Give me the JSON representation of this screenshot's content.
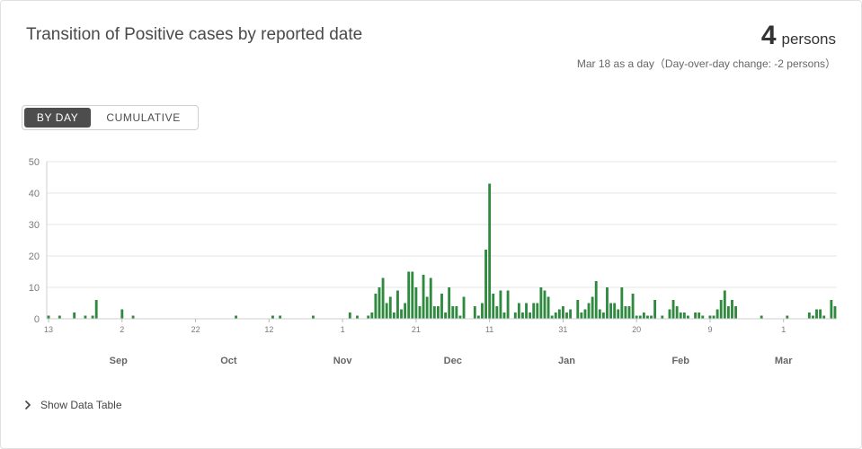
{
  "header": {
    "title": "Transition of Positive cases by reported date",
    "headline_value": "4",
    "headline_unit": "persons",
    "subnote": "Mar 18 as a day（Day-over-day change: -2 persons）"
  },
  "toggle": {
    "by_day": "BY DAY",
    "cumulative": "CUMULATIVE",
    "active": "by_day"
  },
  "footer": {
    "show_table": "Show Data Table",
    "icon": "chevron-right-icon"
  },
  "colors": {
    "bar": "#2f8a3f",
    "grid": "#e6e6e6",
    "axis_text": "#7a7a7a"
  },
  "chart_data": {
    "type": "bar",
    "x_start": "2020-08-13",
    "x_end": "2021-03-18",
    "ylim": [
      0,
      50
    ],
    "yticks": [
      0,
      10,
      20,
      30,
      40,
      50
    ],
    "grid": true,
    "day_ticks": [
      "13",
      "2",
      "22",
      "12",
      "1",
      "21",
      "11",
      "31",
      "20",
      "9",
      "1"
    ],
    "month_labels": [
      "Sep",
      "Oct",
      "Nov",
      "Dec",
      "Jan",
      "Feb",
      "Mar"
    ],
    "values": [
      1,
      0,
      0,
      1,
      0,
      0,
      0,
      2,
      0,
      0,
      1,
      0,
      1,
      6,
      0,
      0,
      0,
      0,
      0,
      0,
      3,
      0,
      0,
      1,
      0,
      0,
      0,
      0,
      0,
      0,
      0,
      0,
      0,
      0,
      0,
      0,
      0,
      0,
      0,
      0,
      0,
      0,
      0,
      0,
      0,
      0,
      0,
      0,
      0,
      0,
      0,
      1,
      0,
      0,
      0,
      0,
      0,
      0,
      0,
      0,
      0,
      1,
      0,
      1,
      0,
      0,
      0,
      0,
      0,
      0,
      0,
      0,
      1,
      0,
      0,
      0,
      0,
      0,
      0,
      0,
      0,
      0,
      2,
      0,
      1,
      0,
      0,
      1,
      2,
      8,
      10,
      13,
      5,
      7,
      2,
      9,
      3,
      5,
      15,
      15,
      10,
      4,
      14,
      7,
      13,
      4,
      4,
      8,
      2,
      10,
      4,
      4,
      1,
      7,
      0,
      0,
      4,
      1,
      5,
      22,
      43,
      8,
      4,
      9,
      2,
      9,
      0,
      2,
      5,
      2,
      5,
      2,
      5,
      5,
      10,
      9,
      7,
      1,
      2,
      3,
      4,
      2,
      3,
      0,
      6,
      2,
      3,
      5,
      7,
      12,
      3,
      2,
      10,
      5,
      5,
      3,
      10,
      4,
      4,
      8,
      1,
      1,
      2,
      1,
      1,
      6,
      0,
      1,
      0,
      3,
      6,
      4,
      2,
      2,
      1,
      0,
      2,
      2,
      1,
      0,
      1,
      1,
      3,
      6,
      9,
      4,
      6,
      4,
      0,
      0,
      0,
      0,
      0,
      0,
      1,
      0,
      0,
      0,
      0,
      0,
      0,
      1,
      0,
      0,
      0,
      0,
      0,
      2,
      1,
      3,
      3,
      1,
      0,
      6,
      4
    ]
  }
}
